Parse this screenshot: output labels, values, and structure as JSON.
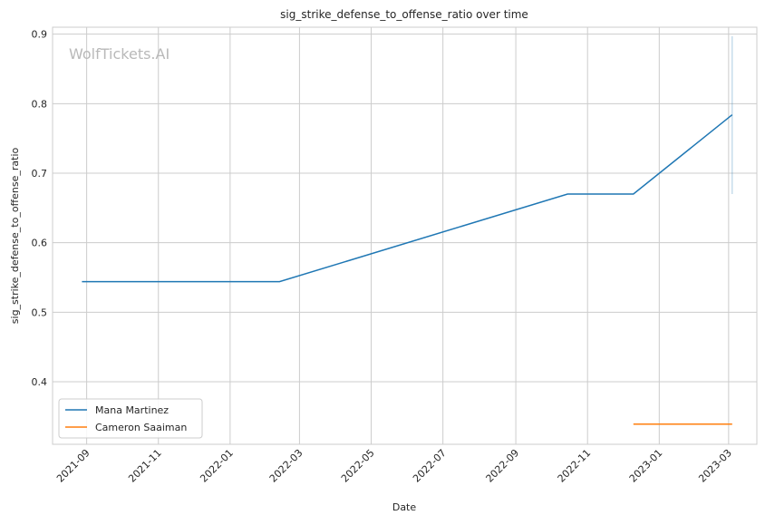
{
  "chart_data": {
    "type": "line",
    "title": "sig_strike_defense_to_offense_ratio over time",
    "xlabel": "Date",
    "ylabel": "sig_strike_defense_to_offense_ratio",
    "watermark": "WolfTickets.AI",
    "xlim": [
      "2021-08-03",
      "2023-03-25"
    ],
    "ylim": [
      0.31,
      0.91
    ],
    "x_ticks": [
      "2021-09",
      "2021-11",
      "2022-01",
      "2022-03",
      "2022-05",
      "2022-07",
      "2022-09",
      "2022-11",
      "2023-01",
      "2023-03"
    ],
    "y_ticks": [
      0.4,
      0.5,
      0.6,
      0.7,
      0.8,
      0.9
    ],
    "grid": true,
    "legend_position": "lower-left",
    "series": [
      {
        "name": "Mana Martinez",
        "color": "#1f77b4",
        "points": [
          {
            "x": "2021-08-28",
            "y": 0.544
          },
          {
            "x": "2022-02-12",
            "y": 0.544
          },
          {
            "x": "2022-10-15",
            "y": 0.67
          },
          {
            "x": "2022-12-10",
            "y": 0.67
          },
          {
            "x": "2023-03-04",
            "y": 0.784
          }
        ],
        "band": {
          "x": "2023-03-04",
          "low": 0.67,
          "high": 0.897
        }
      },
      {
        "name": "Cameron Saaiman",
        "color": "#ff7f0e",
        "points": [
          {
            "x": "2022-12-10",
            "y": 0.339
          },
          {
            "x": "2023-03-04",
            "y": 0.339
          }
        ]
      }
    ]
  }
}
